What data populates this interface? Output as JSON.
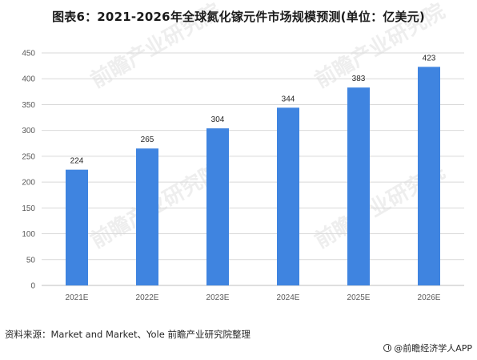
{
  "title": "图表6：2021-2026年全球氮化镓元件市场规模预测(单位：亿美元)",
  "source": "资料来源：Market and Market、Yole 前瞻产业研究院整理",
  "brand": "@前瞻经济学人APP",
  "watermark_text": "前瞻产业研究院",
  "colors": {
    "bar": "#3f84e0",
    "grid": "#d9d9d9",
    "axis": "#bfbfbf"
  },
  "chart_data": {
    "type": "bar",
    "categories": [
      "2021E",
      "2022E",
      "2023E",
      "2024E",
      "2025E",
      "2026E"
    ],
    "values": [
      224,
      265,
      304,
      344,
      383,
      423
    ],
    "title": "图表6：2021-2026年全球氮化镓元件市场规模预测(单位：亿美元)",
    "xlabel": "",
    "ylabel": "",
    "ylim": [
      0,
      450
    ],
    "yticks": [
      0,
      50,
      100,
      150,
      200,
      250,
      300,
      350,
      400,
      450
    ],
    "grid": true,
    "legend": "none"
  }
}
